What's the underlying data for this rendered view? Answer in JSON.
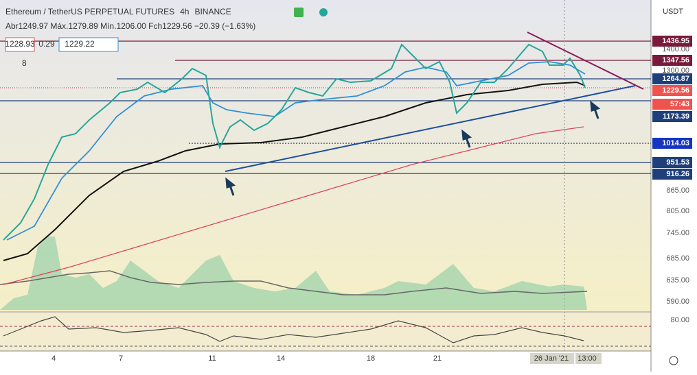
{
  "header": {
    "symbol": "Ethereum / TetherUS PERPETUAL FUTURES",
    "interval": "4h",
    "exchange": "BINANCE",
    "ohlc": "Abr1249.97 Máx.1279.89 Mín.1206.00 Fch1229.56 −20.39 (−1.63%)",
    "bid": "1228.93",
    "spread": "0.29",
    "ask": "1229.22",
    "indicators": "8"
  },
  "price_axis": {
    "currency": "USDT",
    "labels": [
      "1436.95",
      "1400.00",
      "1347.56",
      "1300.00",
      "1264.87",
      "1229.56",
      "57:43",
      "1173.39",
      "1014.03",
      "951.53",
      "916.26",
      "865.00",
      "805.00",
      "745.00",
      "685.00",
      "635.00",
      "590.00",
      "80.00"
    ]
  },
  "time_axis": {
    "labels": [
      "4",
      "7",
      "11",
      "14",
      "18",
      "21",
      "26 Jan '21",
      "13:00"
    ]
  }
}
